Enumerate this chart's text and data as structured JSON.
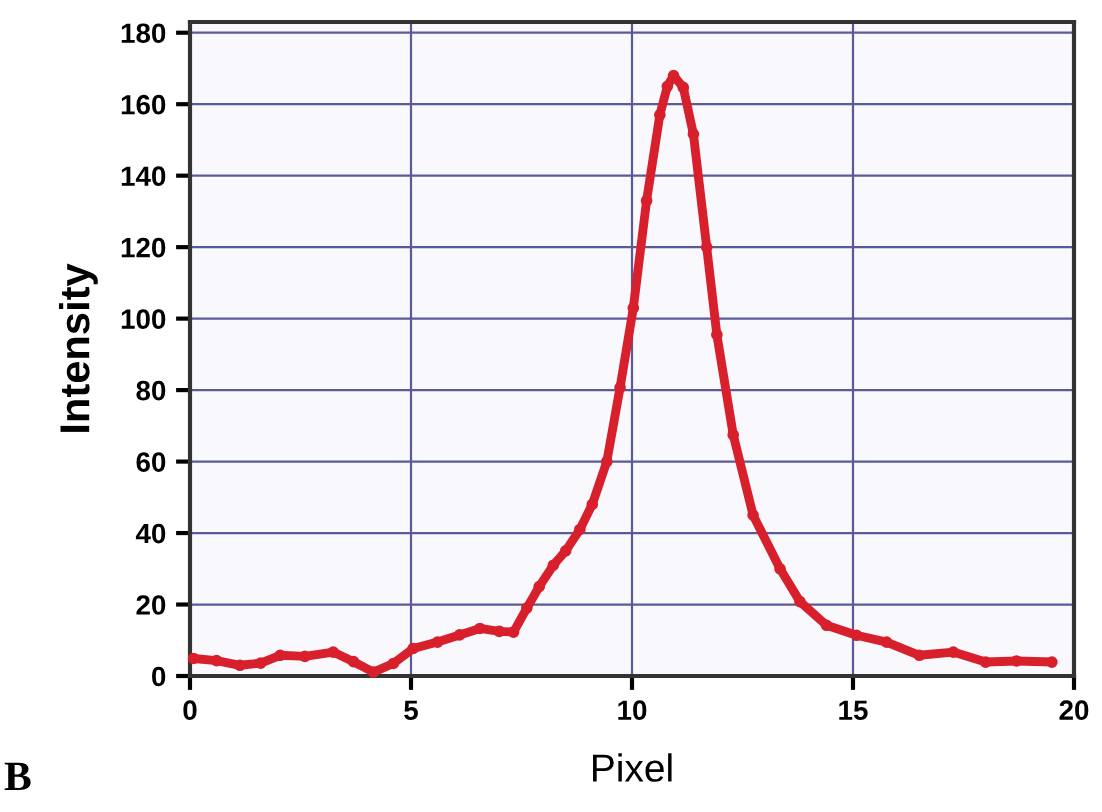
{
  "chart_data": {
    "type": "line",
    "xlabel": "Pixel",
    "ylabel": "Intensity",
    "annotations": [
      "B"
    ],
    "xlim": [
      0,
      20
    ],
    "ylim": [
      0,
      183
    ],
    "xticks": [
      0,
      5,
      10,
      15,
      20
    ],
    "yticks": [
      0,
      20,
      40,
      60,
      80,
      100,
      120,
      140,
      160,
      180
    ],
    "grid": true,
    "marker": "circle",
    "line_style": "solid",
    "series": [
      {
        "color": "#d8202c",
        "x": [
          0.08,
          0.6,
          1.13,
          1.6,
          2.04,
          2.6,
          3.24,
          3.7,
          4.15,
          4.6,
          5.05,
          5.6,
          6.1,
          6.56,
          7.0,
          7.32,
          7.62,
          7.9,
          8.22,
          8.5,
          8.82,
          9.1,
          9.43,
          9.73,
          10.03,
          10.33,
          10.63,
          10.8,
          10.94,
          11.16,
          11.39,
          11.69,
          11.92,
          12.29,
          12.74,
          13.35,
          13.8,
          14.4,
          15.08,
          15.76,
          16.5,
          17.27,
          18.0,
          18.7,
          19.5
        ],
        "values": [
          4.9,
          4.3,
          3,
          3.6,
          5.8,
          5.5,
          6.7,
          4,
          1.1,
          3.5,
          7.7,
          9.5,
          11.5,
          13.3,
          12.5,
          12.3,
          19,
          25,
          31,
          35,
          41,
          48,
          60,
          80.7,
          103,
          133,
          157,
          165,
          168,
          164.7,
          151.6,
          120,
          95.5,
          67.5,
          45,
          30,
          20.8,
          14.2,
          11.4,
          9.5,
          5.8,
          6.7,
          3.9,
          4.2,
          3.9
        ]
      }
    ]
  }
}
